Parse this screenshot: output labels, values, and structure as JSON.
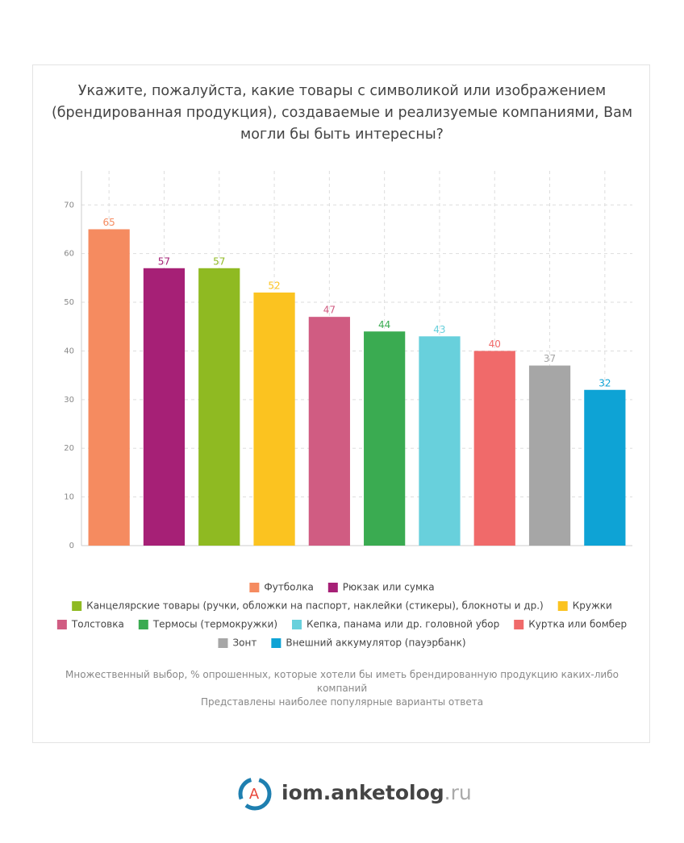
{
  "chart_data": {
    "type": "bar",
    "title": "Укажите, пожалуйста, какие товары с символикой или изображением (брендированная продукция), создаваемые и реализуемые компаниями, Вам могли бы быть интересны?",
    "categories": [
      "Футболка",
      "Рюкзак или сумка",
      "Канцелярские товары (ручки, обложки на паспорт, наклейки (стикеры), блокноты и др.)",
      "Кружки",
      "Толстовка",
      "Термосы (термокружки)",
      "Кепка, панама или др. головной убор",
      "Куртка или бомбер",
      "Зонт",
      "Внешний аккумулятор (пауэрбанк)"
    ],
    "values": [
      65,
      57,
      57,
      52,
      47,
      44,
      43,
      40,
      37,
      32
    ],
    "colors": [
      "#f58b60",
      "#a62076",
      "#8fba22",
      "#fbc320",
      "#d05c82",
      "#3aab51",
      "#68d0dc",
      "#f06a6a",
      "#a6a6a6",
      "#0ea3d5"
    ],
    "ylim": [
      0,
      77
    ],
    "yticks": [
      0,
      10,
      20,
      30,
      40,
      50,
      60,
      70
    ],
    "grid": true,
    "notes": [
      "Множественный выбор, % опрошенных, которые хотели бы иметь брендированную продукцию каких-либо компаний",
      "Представлены наиболее популярные варианты ответа"
    ]
  },
  "logo": {
    "icon_letter": "A",
    "name": "iom.anketolog",
    "suffix": ".ru"
  }
}
